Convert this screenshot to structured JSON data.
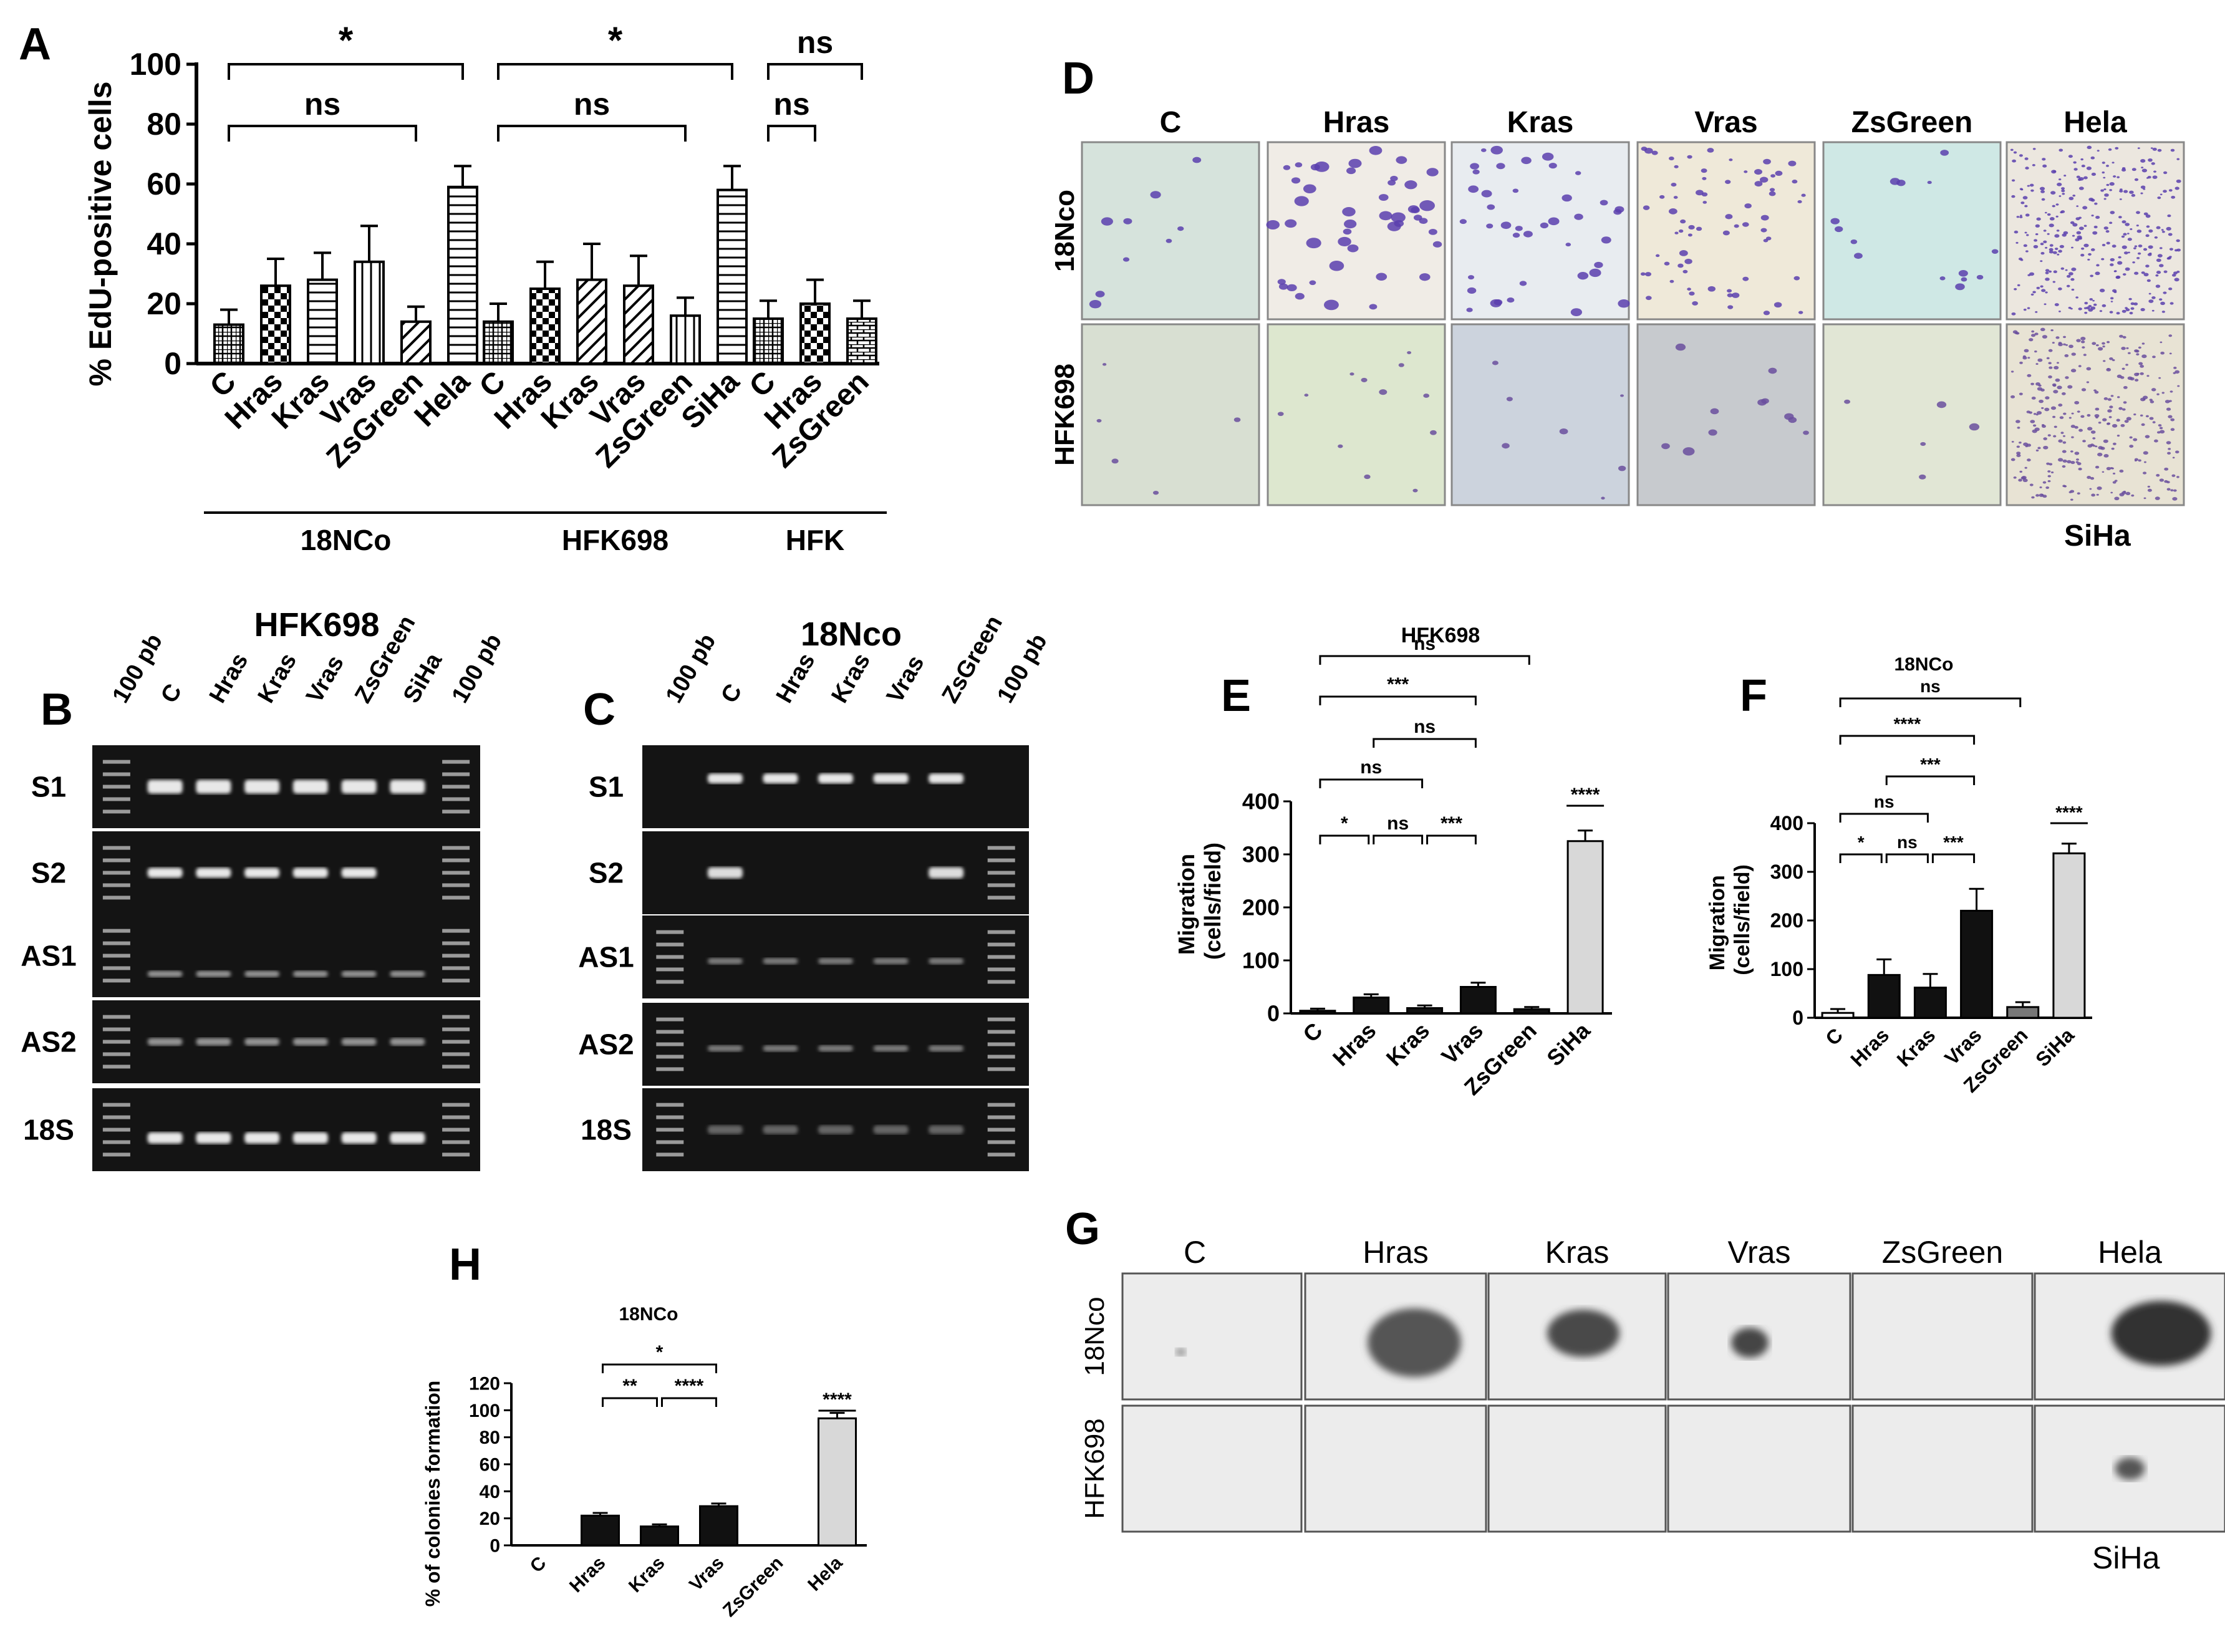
{
  "panelA": {
    "letter": "A",
    "ylabel": "% EdU-positive cells",
    "yticks": [
      0,
      20,
      40,
      60,
      80,
      100
    ],
    "groups": [
      {
        "name": "18NCo",
        "bars": [
          {
            "label": "C",
            "value": 13,
            "err": 5,
            "pattern": "grid"
          },
          {
            "label": "Hras",
            "value": 26,
            "err": 9,
            "pattern": "check"
          },
          {
            "label": "Kras",
            "value": 28,
            "err": 9,
            "pattern": "hlines"
          },
          {
            "label": "Vras",
            "value": 34,
            "err": 12,
            "pattern": "vlines"
          },
          {
            "label": "ZsGreen",
            "value": 14,
            "err": 5,
            "pattern": "diag"
          },
          {
            "label": "Hela",
            "value": 59,
            "err": 7,
            "pattern": "hlines"
          }
        ]
      },
      {
        "name": "HFK698",
        "bars": [
          {
            "label": "C",
            "value": 14,
            "err": 6,
            "pattern": "grid"
          },
          {
            "label": "Hras",
            "value": 25,
            "err": 9,
            "pattern": "check"
          },
          {
            "label": "Kras",
            "value": 28,
            "err": 12,
            "pattern": "diag"
          },
          {
            "label": "Vras",
            "value": 26,
            "err": 10,
            "pattern": "diag"
          },
          {
            "label": "ZsGreen",
            "value": 16,
            "err": 6,
            "pattern": "vlines"
          },
          {
            "label": "SiHa",
            "value": 58,
            "err": 8,
            "pattern": "hlines"
          }
        ]
      },
      {
        "name": "HFK",
        "bars": [
          {
            "label": "C",
            "value": 15,
            "err": 6,
            "pattern": "grid"
          },
          {
            "label": "Hras",
            "value": 20,
            "err": 8,
            "pattern": "check"
          },
          {
            "label": "ZsGreen",
            "value": 15,
            "err": 6,
            "pattern": "brick"
          }
        ]
      }
    ],
    "sig": [
      {
        "from": [
          0,
          0
        ],
        "to": [
          0,
          5
        ],
        "label": "*",
        "level": 100
      },
      {
        "from": [
          0,
          0
        ],
        "to": [
          0,
          4
        ],
        "label": "ns",
        "level": 80
      },
      {
        "from": [
          1,
          0
        ],
        "to": [
          1,
          5
        ],
        "label": "*",
        "level": 100
      },
      {
        "from": [
          1,
          0
        ],
        "to": [
          1,
          4
        ],
        "label": "ns",
        "level": 80
      },
      {
        "from": [
          2,
          0
        ],
        "to": [
          2,
          2
        ],
        "label": "ns",
        "level": 100
      },
      {
        "from": [
          2,
          0
        ],
        "to": [
          2,
          1
        ],
        "label": "ns",
        "level": 80
      }
    ]
  },
  "panelD": {
    "letter": "D",
    "cols": [
      "C",
      "Hras",
      "Kras",
      "Vras",
      "ZsGreen",
      "Hela"
    ],
    "rows": [
      "18Nco",
      "HFK698"
    ],
    "note": "SiHa"
  },
  "panelB": {
    "letter": "B",
    "title": "HFK698",
    "lanes": [
      "100 pb",
      "C",
      "Hras",
      "Kras",
      "Vras",
      "ZsGreen",
      "SiHa",
      "100 pb"
    ],
    "rows": [
      "S1",
      "S2",
      "AS1",
      "AS2",
      "18S"
    ]
  },
  "panelC": {
    "letter": "C",
    "title": "18Nco",
    "lanes": [
      "100 pb",
      "C",
      "Hras",
      "Kras",
      "Vras",
      "ZsGreen",
      "100 pb"
    ],
    "rows": [
      "S1",
      "S2",
      "AS1",
      "AS2",
      "18S"
    ]
  },
  "panelE": {
    "letter": "E",
    "title": "HFK698",
    "ylabel1": "Migration",
    "ylabel2": "(cells/field)",
    "yticks": [
      0,
      100,
      200,
      300,
      400
    ]
  },
  "panelF": {
    "letter": "F",
    "title": "18NCo",
    "ylabel1": "Migration",
    "ylabel2": "(cells/field)",
    "yticks": [
      0,
      100,
      200,
      300,
      400
    ]
  },
  "panelH": {
    "letter": "H",
    "title": "18NCo",
    "ylabel": "% of colonies formation",
    "yticks": [
      0,
      20,
      40,
      60,
      80,
      100,
      120
    ]
  },
  "panelG": {
    "letter": "G",
    "cols": [
      "C",
      "Hras",
      "Kras",
      "Vras",
      "ZsGreen",
      "Hela"
    ],
    "rows": [
      "18Nco",
      "HFK698"
    ],
    "note": "SiHa"
  },
  "chart_data": [
    {
      "type": "bar",
      "ylabel": "% EdU-positive cells",
      "ylim": [
        0,
        100
      ],
      "categories": [
        "C",
        "Hras",
        "Kras",
        "Vras",
        "ZsGreen",
        "Hela",
        "C",
        "Hras",
        "Kras",
        "Vras",
        "ZsGreen",
        "SiHa",
        "C",
        "Hras",
        "ZsGreen"
      ],
      "groups": [
        "18NCo",
        "HFK698",
        "HFK"
      ],
      "values": [
        13,
        26,
        28,
        34,
        14,
        59,
        14,
        25,
        28,
        26,
        16,
        58,
        15,
        20,
        15
      ],
      "errors": [
        5,
        9,
        9,
        12,
        5,
        7,
        6,
        9,
        12,
        10,
        6,
        8,
        6,
        8,
        6
      ]
    },
    {
      "type": "bar",
      "title": "HFK698",
      "ylabel": "Migration (cells/field)",
      "ylim": [
        0,
        400
      ],
      "categories": [
        "C",
        "Hras",
        "Kras",
        "Vras",
        "ZsGreen",
        "SiHa"
      ],
      "values": [
        5,
        30,
        10,
        50,
        8,
        325
      ],
      "errors": [
        4,
        6,
        5,
        8,
        4,
        20
      ],
      "colors": [
        "#111111",
        "#111111",
        "#111111",
        "#111111",
        "#111111",
        "#d8d8d8"
      ],
      "significance": [
        {
          "pair": [
            "C",
            "Hras"
          ],
          "label": "*"
        },
        {
          "pair": [
            "Hras",
            "Kras"
          ],
          "label": "ns"
        },
        {
          "pair": [
            "Kras",
            "Vras"
          ],
          "label": "***"
        },
        {
          "pair": [
            "C",
            "Kras"
          ],
          "label": "ns"
        },
        {
          "pair": [
            "Hras",
            "Vras"
          ],
          "label": "ns"
        },
        {
          "pair": [
            "C",
            "Vras"
          ],
          "label": "***"
        },
        {
          "pair": [
            "C",
            "ZsGreen"
          ],
          "label": "ns"
        },
        {
          "pair": [
            "SiHa",
            "SiHa"
          ],
          "label": "****"
        }
      ]
    },
    {
      "type": "bar",
      "title": "18NCo",
      "ylabel": "Migration (cells/field)",
      "ylim": [
        0,
        400
      ],
      "categories": [
        "C",
        "Hras",
        "Kras",
        "Vras",
        "ZsGreen",
        "SiHa"
      ],
      "values": [
        10,
        88,
        62,
        220,
        22,
        338
      ],
      "errors": [
        8,
        32,
        28,
        45,
        10,
        20
      ],
      "colors": [
        "#ffffff",
        "#111111",
        "#111111",
        "#111111",
        "#777777",
        "#d8d8d8"
      ],
      "significance": [
        {
          "pair": [
            "C",
            "Hras"
          ],
          "label": "*"
        },
        {
          "pair": [
            "Hras",
            "Kras"
          ],
          "label": "ns"
        },
        {
          "pair": [
            "Kras",
            "Vras"
          ],
          "label": "***"
        },
        {
          "pair": [
            "C",
            "Kras"
          ],
          "label": "ns"
        },
        {
          "pair": [
            "Hras",
            "Vras"
          ],
          "label": "***"
        },
        {
          "pair": [
            "C",
            "Vras"
          ],
          "label": "****"
        },
        {
          "pair": [
            "C",
            "ZsGreen"
          ],
          "label": "ns"
        },
        {
          "pair": [
            "SiHa",
            "SiHa"
          ],
          "label": "****"
        }
      ]
    },
    {
      "type": "bar",
      "title": "18NCo",
      "ylabel": "% of colonies formation",
      "ylim": [
        0,
        120
      ],
      "categories": [
        "C",
        "Hras",
        "Kras",
        "Vras",
        "ZsGreen",
        "Hela"
      ],
      "values": [
        0,
        22,
        14,
        29,
        0,
        94
      ],
      "errors": [
        0,
        2,
        1.5,
        2,
        0,
        4
      ],
      "colors": [
        "#111111",
        "#111111",
        "#111111",
        "#111111",
        "#111111",
        "#d8d8d8"
      ],
      "significance": [
        {
          "pair": [
            "Hras",
            "Kras"
          ],
          "label": "**"
        },
        {
          "pair": [
            "Kras",
            "Vras"
          ],
          "label": "****"
        },
        {
          "pair": [
            "Hras",
            "Vras"
          ],
          "label": "*"
        },
        {
          "pair": [
            "Hela",
            "Hela"
          ],
          "label": "****"
        }
      ]
    }
  ]
}
